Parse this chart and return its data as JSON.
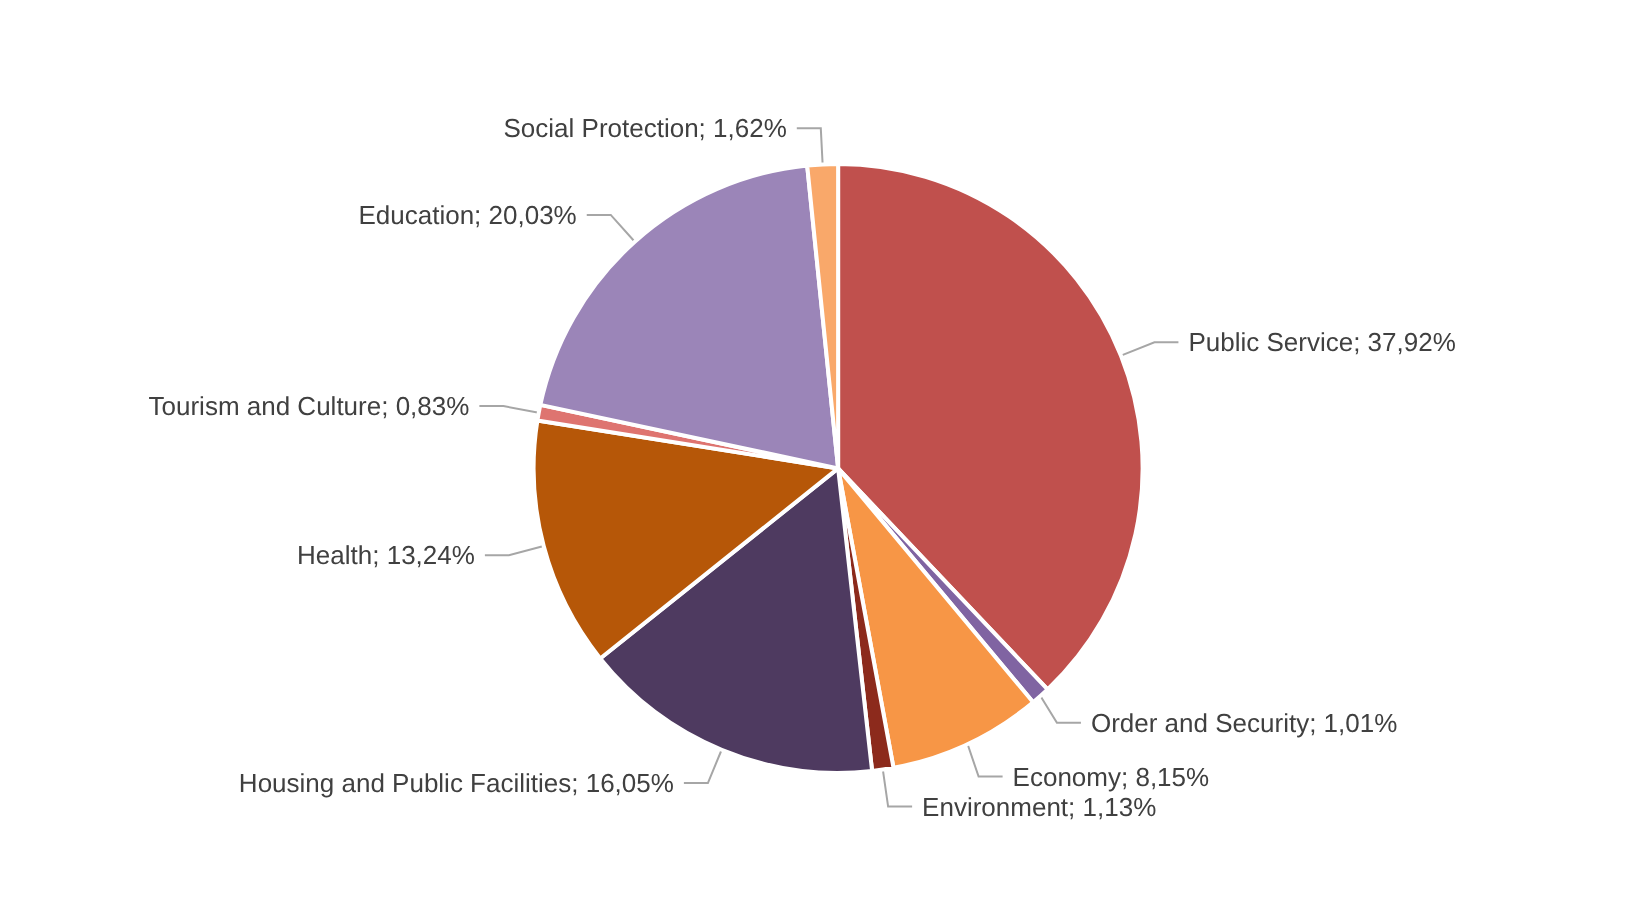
{
  "chart_data": {
    "type": "pie",
    "categories": [
      "Public Service",
      "Order and Security",
      "Economy",
      "Environment",
      "Housing and Public Facilities",
      "Health",
      "Tourism and Culture",
      "Education",
      "Social Protection"
    ],
    "values": [
      37.92,
      1.01,
      8.15,
      1.13,
      16.05,
      13.24,
      0.83,
      20.03,
      1.62
    ],
    "value_labels": [
      "37,92%",
      "1,01%",
      "8,15%",
      "1,13%",
      "16,05%",
      "13,24%",
      "0,83%",
      "20,03%",
      "1,62%"
    ],
    "colors": [
      "#c0504d",
      "#8064a2",
      "#f79646",
      "#8c2a1c",
      "#4e3a60",
      "#b65708",
      "#de7470",
      "#9b85b8",
      "#f9a86a"
    ],
    "legend": false
  }
}
